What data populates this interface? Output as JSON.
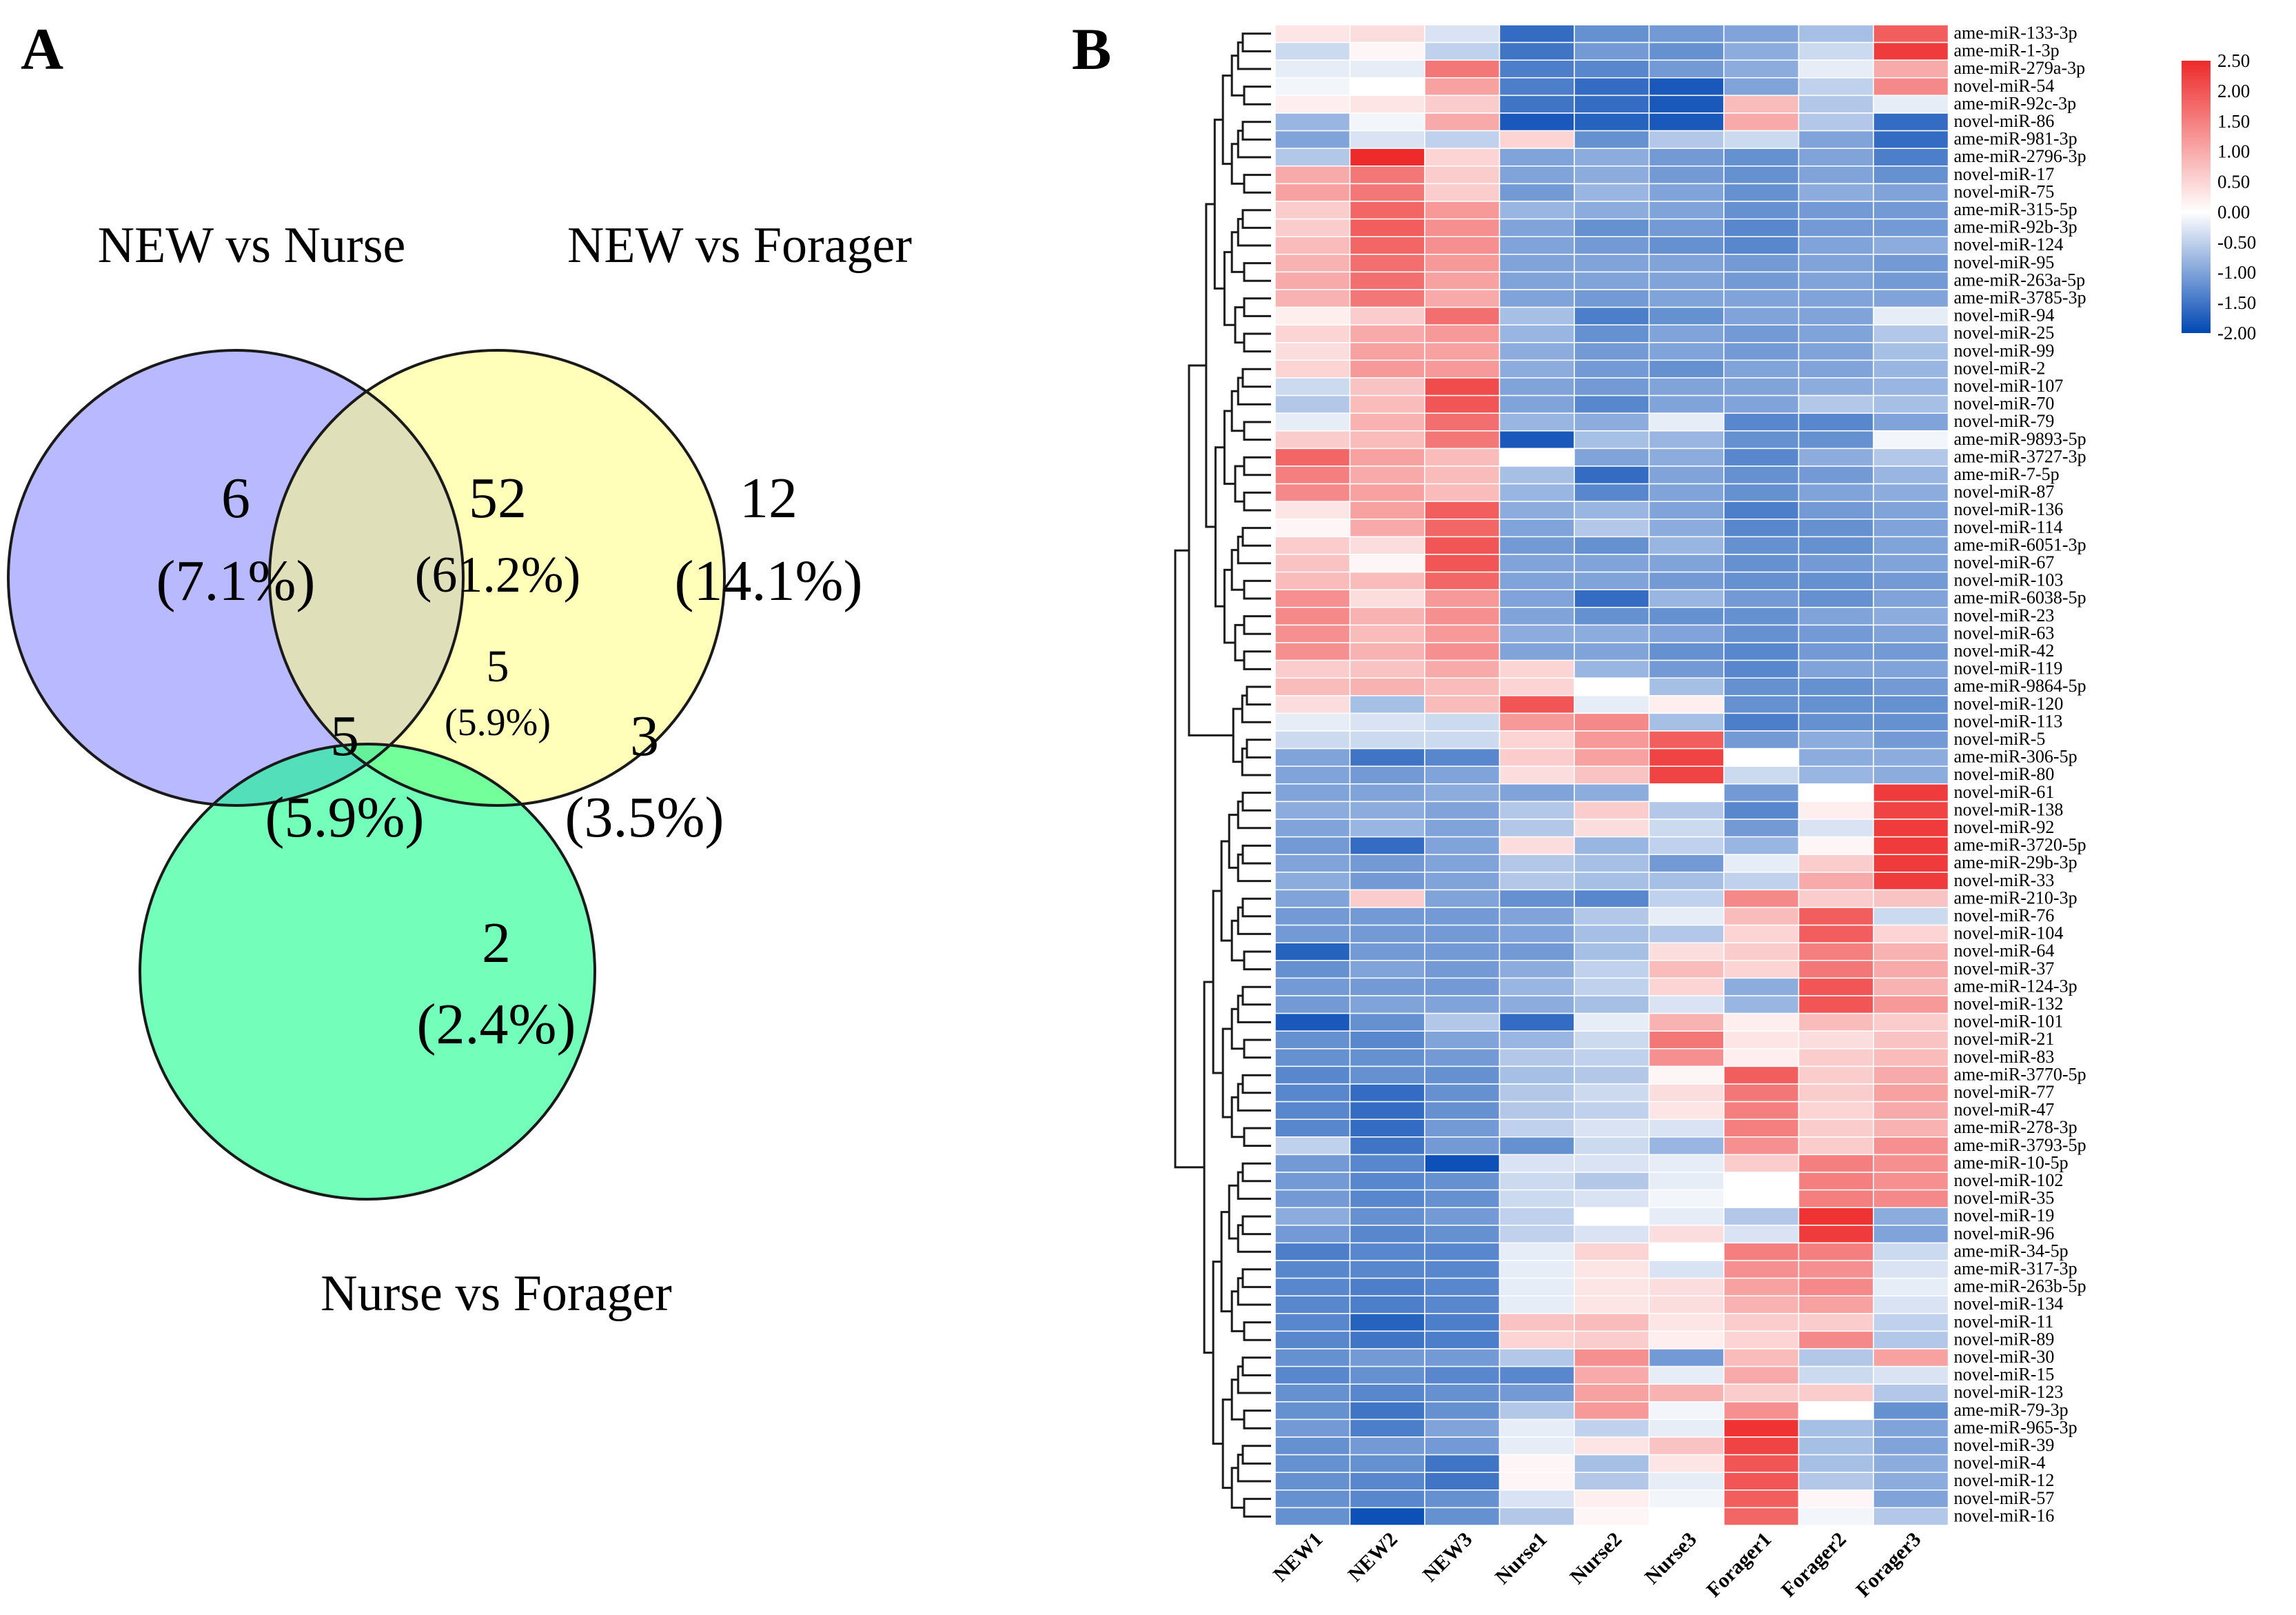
{
  "panel_a": {
    "letter": "A",
    "sets": [
      {
        "name": "NEW vs Nurse",
        "color": "#7f7fff"
      },
      {
        "name": "NEW vs Forager",
        "color": "#ffff7f"
      },
      {
        "name": "Nurse vs Forager",
        "color": "#00ff7f"
      }
    ],
    "regions": [
      {
        "id": "nurse_only",
        "count": "6",
        "percent": "(7.1%)"
      },
      {
        "id": "new_nurse_new_forager",
        "count": "52",
        "percent": "(61.2%)"
      },
      {
        "id": "forager_only",
        "count": "12",
        "percent": "(14.1%)"
      },
      {
        "id": "all_three",
        "count": "5",
        "percent": "(5.9%)"
      },
      {
        "id": "new_nurse_nurse_forager",
        "count": "5",
        "percent": "(5.9%)"
      },
      {
        "id": "new_forager_nurse_forager",
        "count": "3",
        "percent": "(3.5%)"
      },
      {
        "id": "nurse_forager_only",
        "count": "2",
        "percent": "(2.4%)"
      }
    ]
  },
  "panel_b": {
    "letter": "B",
    "color_scale": {
      "min": -2.0,
      "max": 2.5,
      "low_color": "#0047b3",
      "mid_color": "#ffffff",
      "high_color": "#ee2a2a",
      "tick_labels": [
        "2.50",
        "2.00",
        "1.50",
        "1.00",
        "0.50",
        "0.00",
        "-0.50",
        "-1.00",
        "-1.50",
        "-2.00"
      ]
    }
  },
  "chart_data": {
    "type": "heatmap",
    "columns": [
      "NEW1",
      "NEW2",
      "NEW3",
      "Nurse1",
      "Nurse2",
      "Nurse3",
      "Forager1",
      "Forager2",
      "Forager3"
    ],
    "rows": [
      "ame-miR-133-3p",
      "ame-miR-1-3p",
      "ame-miR-279a-3p",
      "novel-miR-54",
      "ame-miR-92c-3p",
      "novel-miR-86",
      "ame-miR-981-3p",
      "ame-miR-2796-3p",
      "novel-miR-17",
      "novel-miR-75",
      "ame-miR-315-5p",
      "ame-miR-92b-3p",
      "novel-miR-124",
      "novel-miR-95",
      "ame-miR-263a-5p",
      "ame-miR-3785-3p",
      "novel-miR-94",
      "novel-miR-25",
      "novel-miR-99",
      "novel-miR-2",
      "novel-miR-107",
      "novel-miR-70",
      "novel-miR-79",
      "ame-miR-9893-5p",
      "ame-miR-3727-3p",
      "ame-miR-7-5p",
      "novel-miR-87",
      "novel-miR-136",
      "novel-miR-114",
      "ame-miR-6051-3p",
      "novel-miR-67",
      "novel-miR-103",
      "ame-miR-6038-5p",
      "novel-miR-23",
      "novel-miR-63",
      "novel-miR-42",
      "novel-miR-119",
      "ame-miR-9864-5p",
      "novel-miR-120",
      "novel-miR-113",
      "novel-miR-5",
      "ame-miR-306-5p",
      "novel-miR-80",
      "novel-miR-61",
      "novel-miR-138",
      "novel-miR-92",
      "ame-miR-3720-5p",
      "ame-miR-29b-3p",
      "novel-miR-33",
      "ame-miR-210-3p",
      "novel-miR-76",
      "novel-miR-104",
      "novel-miR-64",
      "novel-miR-37",
      "ame-miR-124-3p",
      "novel-miR-132",
      "novel-miR-101",
      "novel-miR-21",
      "novel-miR-83",
      "ame-miR-3770-5p",
      "novel-miR-77",
      "novel-miR-47",
      "ame-miR-278-3p",
      "ame-miR-3793-5p",
      "ame-miR-10-5p",
      "novel-miR-102",
      "novel-miR-35",
      "novel-miR-19",
      "novel-miR-96",
      "ame-miR-34-5p",
      "ame-miR-317-3p",
      "ame-miR-263b-5p",
      "novel-miR-134",
      "novel-miR-11",
      "novel-miR-89",
      "novel-miR-30",
      "novel-miR-15",
      "novel-miR-123",
      "ame-miR-79-3p",
      "ame-miR-965-3p",
      "novel-miR-39",
      "novel-miR-4",
      "novel-miR-12",
      "novel-miR-57",
      "novel-miR-16"
    ],
    "values": [
      [
        0.3,
        0.4,
        -0.3,
        -1.6,
        -1.2,
        -1.1,
        -1.0,
        -0.7,
        1.9
      ],
      [
        -0.4,
        0.1,
        -0.5,
        -1.5,
        -1.1,
        -1.2,
        -0.9,
        -0.4,
        2.3
      ],
      [
        -0.2,
        -0.2,
        1.6,
        -1.4,
        -1.3,
        -1.1,
        -0.9,
        -0.2,
        1.0
      ],
      [
        -0.1,
        0.0,
        1.1,
        -1.4,
        -1.6,
        -1.8,
        -1.0,
        -0.5,
        1.4
      ],
      [
        0.2,
        0.3,
        0.6,
        -1.5,
        -1.6,
        -1.8,
        0.8,
        -0.6,
        -0.2
      ],
      [
        -0.8,
        -0.1,
        1.0,
        -1.8,
        -1.7,
        -1.8,
        1.0,
        -0.6,
        -1.6
      ],
      [
        -1.0,
        -0.3,
        -0.5,
        0.5,
        -1.2,
        -0.6,
        -0.4,
        -1.0,
        -1.6
      ],
      [
        -0.6,
        2.5,
        0.5,
        -1.0,
        -0.9,
        -1.1,
        -1.2,
        -1.0,
        -1.4
      ],
      [
        1.0,
        1.6,
        0.6,
        -1.0,
        -0.9,
        -1.1,
        -1.2,
        -1.0,
        -1.2
      ],
      [
        1.1,
        1.6,
        0.6,
        -1.1,
        -0.8,
        -1.0,
        -1.2,
        -0.9,
        -1.0
      ],
      [
        0.6,
        1.8,
        1.2,
        -0.8,
        -0.9,
        -1.0,
        -1.2,
        -1.1,
        -1.1
      ],
      [
        0.6,
        1.9,
        1.3,
        -1.0,
        -1.2,
        -1.1,
        -1.3,
        -1.1,
        -1.1
      ],
      [
        0.8,
        1.8,
        1.3,
        -1.0,
        -1.1,
        -1.2,
        -1.3,
        -1.0,
        -0.9
      ],
      [
        0.9,
        1.7,
        1.2,
        -1.0,
        -1.0,
        -1.0,
        -1.1,
        -1.0,
        -1.1
      ],
      [
        1.0,
        1.7,
        1.1,
        -1.0,
        -1.0,
        -1.0,
        -1.1,
        -1.0,
        -1.1
      ],
      [
        0.9,
        1.6,
        1.0,
        -1.0,
        -1.1,
        -1.0,
        -1.0,
        -1.0,
        -1.0
      ],
      [
        0.2,
        0.6,
        1.7,
        -0.7,
        -1.4,
        -1.2,
        -1.0,
        -1.0,
        -0.2
      ],
      [
        0.5,
        1.0,
        1.2,
        -0.8,
        -1.2,
        -1.0,
        -1.1,
        -1.0,
        -0.6
      ],
      [
        0.4,
        1.1,
        1.1,
        -0.9,
        -1.1,
        -1.0,
        -1.1,
        -1.0,
        -0.7
      ],
      [
        0.5,
        1.2,
        1.2,
        -0.9,
        -1.1,
        -1.2,
        -1.0,
        -1.0,
        -0.8
      ],
      [
        -0.4,
        0.7,
        2.1,
        -1.0,
        -1.1,
        -1.0,
        -1.0,
        -0.9,
        -0.8
      ],
      [
        -0.6,
        0.8,
        2.0,
        -1.0,
        -1.3,
        -1.0,
        -1.0,
        -0.6,
        -0.7
      ],
      [
        -0.2,
        0.9,
        1.7,
        -0.8,
        -0.9,
        -0.2,
        -1.3,
        -1.3,
        -1.0
      ],
      [
        0.6,
        0.8,
        1.6,
        -1.8,
        -0.7,
        -0.8,
        -1.2,
        -1.2,
        -0.1
      ],
      [
        1.8,
        1.1,
        0.8,
        0.0,
        -1.0,
        -0.9,
        -1.3,
        -0.9,
        -0.6
      ],
      [
        1.5,
        1.0,
        0.8,
        -0.7,
        -1.6,
        -1.0,
        -1.2,
        -1.1,
        -0.8
      ],
      [
        1.4,
        1.1,
        0.8,
        -0.8,
        -1.3,
        -1.0,
        -1.2,
        -1.0,
        -0.9
      ],
      [
        0.3,
        1.1,
        1.9,
        -0.9,
        -0.8,
        -1.0,
        -1.4,
        -1.1,
        -1.0
      ],
      [
        0.1,
        1.0,
        1.8,
        -1.0,
        -0.6,
        -0.9,
        -1.3,
        -1.2,
        -1.0
      ],
      [
        0.6,
        0.4,
        2.0,
        -1.1,
        -1.2,
        -0.8,
        -1.2,
        -1.2,
        -1.0
      ],
      [
        0.7,
        0.1,
        2.0,
        -1.0,
        -1.0,
        -1.0,
        -1.2,
        -1.1,
        -1.0
      ],
      [
        0.8,
        0.8,
        1.8,
        -1.0,
        -1.0,
        -1.1,
        -1.2,
        -1.2,
        -1.1
      ],
      [
        1.3,
        0.4,
        1.2,
        -1.0,
        -1.6,
        -0.8,
        -1.1,
        -1.2,
        -1.0
      ],
      [
        1.4,
        0.9,
        1.3,
        -1.0,
        -1.2,
        -1.2,
        -1.2,
        -1.0,
        -0.9
      ],
      [
        1.3,
        0.8,
        1.2,
        -0.9,
        -0.9,
        -1.0,
        -1.2,
        -1.1,
        -1.0
      ],
      [
        1.3,
        0.9,
        1.3,
        -1.0,
        -1.0,
        -1.2,
        -1.3,
        -1.1,
        -1.1
      ],
      [
        0.6,
        0.7,
        1.0,
        0.5,
        -0.8,
        -1.1,
        -1.3,
        -1.0,
        -1.0
      ],
      [
        0.8,
        0.9,
        0.8,
        0.5,
        0.0,
        -0.7,
        -1.2,
        -1.2,
        -1.1
      ],
      [
        0.4,
        -0.7,
        0.8,
        2.0,
        -0.2,
        0.2,
        -1.2,
        -1.2,
        -1.2
      ],
      [
        -0.2,
        -0.3,
        -0.4,
        1.2,
        1.4,
        -0.7,
        -1.4,
        -1.2,
        -1.2
      ],
      [
        -0.4,
        -0.4,
        -0.4,
        0.5,
        1.2,
        1.9,
        -1.1,
        -0.9,
        -1.1
      ],
      [
        -1.0,
        -1.5,
        -1.3,
        0.6,
        1.1,
        2.2,
        0.0,
        -0.9,
        -0.9
      ],
      [
        -1.0,
        -1.1,
        -1.0,
        0.4,
        0.7,
        2.2,
        -0.4,
        -0.8,
        -0.9
      ],
      [
        -1.0,
        -1.0,
        -0.9,
        -1.0,
        -0.9,
        0.0,
        -1.1,
        0.0,
        2.3
      ],
      [
        -0.9,
        -0.9,
        -1.0,
        -0.6,
        0.6,
        -0.6,
        -1.3,
        0.2,
        2.2
      ],
      [
        -1.0,
        -0.8,
        -1.0,
        -0.6,
        0.4,
        -0.4,
        -1.1,
        -0.3,
        2.3
      ],
      [
        -1.1,
        -1.6,
        -1.0,
        0.4,
        -0.8,
        -0.5,
        -0.8,
        0.1,
        2.3
      ],
      [
        -1.0,
        -1.1,
        -1.0,
        -0.6,
        -0.7,
        -1.1,
        -0.2,
        0.6,
        2.3
      ],
      [
        -0.9,
        -1.1,
        -1.0,
        -0.6,
        -0.7,
        -0.7,
        -0.5,
        1.0,
        2.3
      ],
      [
        -1.0,
        0.6,
        -1.0,
        -1.2,
        -1.3,
        -0.5,
        1.4,
        0.6,
        0.7
      ],
      [
        -1.1,
        -1.1,
        -1.1,
        -1.0,
        -0.6,
        -0.2,
        0.8,
        1.9,
        -0.4
      ],
      [
        -1.1,
        -1.1,
        -1.1,
        -1.0,
        -0.7,
        -0.6,
        0.5,
        1.9,
        0.5
      ],
      [
        -1.7,
        -1.1,
        -1.1,
        -1.1,
        -0.7,
        0.4,
        0.6,
        1.5,
        0.9
      ],
      [
        -1.2,
        -1.0,
        -1.1,
        -0.9,
        -0.5,
        0.8,
        0.5,
        1.6,
        1.0
      ],
      [
        -1.1,
        -1.1,
        -1.1,
        -0.8,
        -0.5,
        0.5,
        -0.9,
        2.0,
        0.9
      ],
      [
        -1.1,
        -1.0,
        -1.0,
        -0.9,
        -0.7,
        -0.3,
        -0.8,
        2.0,
        1.2
      ],
      [
        -1.8,
        -1.2,
        -0.6,
        -1.6,
        -0.2,
        0.9,
        0.2,
        0.8,
        0.6
      ],
      [
        -1.2,
        -1.3,
        -1.0,
        -0.8,
        -0.4,
        1.6,
        0.3,
        0.4,
        0.7
      ],
      [
        -1.2,
        -1.2,
        -1.1,
        -0.6,
        -0.5,
        1.3,
        0.2,
        0.6,
        0.8
      ],
      [
        -1.3,
        -1.2,
        -1.2,
        -0.7,
        -0.6,
        0.1,
        1.9,
        0.6,
        1.0
      ],
      [
        -1.3,
        -1.6,
        -1.2,
        -0.6,
        -0.4,
        0.4,
        1.6,
        0.6,
        1.1
      ],
      [
        -1.3,
        -1.6,
        -1.2,
        -0.6,
        -0.5,
        0.3,
        1.5,
        0.5,
        1.0
      ],
      [
        -1.3,
        -1.6,
        -1.1,
        -0.5,
        -0.3,
        -0.3,
        1.5,
        0.6,
        0.9
      ],
      [
        -0.5,
        -1.5,
        -1.1,
        -1.2,
        -0.4,
        -0.8,
        1.3,
        0.6,
        1.3
      ],
      [
        -1.1,
        -1.3,
        -1.9,
        -0.3,
        -0.3,
        -0.2,
        0.6,
        1.5,
        1.3
      ],
      [
        -1.1,
        -1.3,
        -1.2,
        -0.4,
        -0.6,
        -0.2,
        0.0,
        1.5,
        1.3
      ],
      [
        -1.1,
        -1.3,
        -1.2,
        -0.4,
        -0.3,
        -0.1,
        0.0,
        1.5,
        1.4
      ],
      [
        -0.9,
        -1.2,
        -1.1,
        -0.5,
        0.0,
        -0.2,
        -0.6,
        2.4,
        -0.9
      ],
      [
        -1.1,
        -1.3,
        -1.2,
        -0.5,
        -0.3,
        0.4,
        -0.3,
        2.3,
        -1.0
      ],
      [
        -1.4,
        -1.3,
        -1.3,
        -0.2,
        0.5,
        0.0,
        1.5,
        1.5,
        -0.4
      ],
      [
        -1.3,
        -1.3,
        -1.3,
        -0.2,
        0.3,
        -0.3,
        1.3,
        1.3,
        -0.3
      ],
      [
        -1.3,
        -1.4,
        -1.3,
        -0.2,
        0.3,
        0.4,
        1.1,
        1.4,
        -0.2
      ],
      [
        -1.3,
        -1.4,
        -1.3,
        -0.2,
        0.3,
        0.4,
        0.9,
        1.1,
        -0.3
      ],
      [
        -1.3,
        -1.7,
        -1.4,
        0.7,
        0.8,
        0.3,
        0.6,
        0.6,
        -0.5
      ],
      [
        -1.3,
        -1.5,
        -1.4,
        0.5,
        0.6,
        0.2,
        0.5,
        1.4,
        -0.6
      ],
      [
        -1.2,
        -1.1,
        -1.1,
        -0.6,
        1.3,
        -1.1,
        0.8,
        -0.6,
        1.1
      ],
      [
        -1.3,
        -1.2,
        -1.3,
        -1.3,
        1.0,
        -0.2,
        1.0,
        -0.4,
        -0.3
      ],
      [
        -1.2,
        -1.3,
        -1.2,
        -1.1,
        1.1,
        0.9,
        0.6,
        0.6,
        -0.6
      ],
      [
        -1.2,
        -1.5,
        -1.2,
        -0.6,
        1.2,
        -0.1,
        1.3,
        0.0,
        -1.2
      ],
      [
        -1.1,
        -1.4,
        -1.0,
        -0.2,
        -0.5,
        -0.2,
        2.4,
        -0.7,
        -1.0
      ],
      [
        -1.2,
        -1.1,
        -1.1,
        -0.2,
        0.3,
        0.7,
        2.2,
        -0.7,
        -1.0
      ],
      [
        -1.2,
        -1.2,
        -1.5,
        0.1,
        -0.7,
        0.3,
        2.0,
        -0.7,
        -0.9
      ],
      [
        -1.2,
        -1.3,
        -1.5,
        0.1,
        -0.6,
        -0.2,
        2.0,
        -0.6,
        -0.9
      ],
      [
        -1.2,
        -1.3,
        -1.2,
        -0.3,
        0.2,
        -0.1,
        1.9,
        0.1,
        -1.0
      ],
      [
        -1.2,
        -1.9,
        -1.2,
        -0.6,
        0.1,
        0.0,
        1.8,
        -0.1,
        -0.6
      ]
    ],
    "colorbar_range": [
      -2.0,
      2.5
    ]
  }
}
